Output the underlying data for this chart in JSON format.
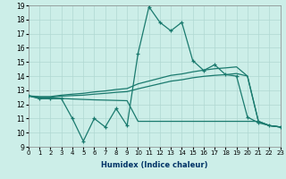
{
  "xlabel": "Humidex (Indice chaleur)",
  "xlim": [
    0,
    23
  ],
  "ylim": [
    9,
    19
  ],
  "xticks": [
    0,
    1,
    2,
    3,
    4,
    5,
    6,
    7,
    8,
    9,
    10,
    11,
    12,
    13,
    14,
    15,
    16,
    17,
    18,
    19,
    20,
    21,
    22,
    23
  ],
  "yticks": [
    9,
    10,
    11,
    12,
    13,
    14,
    15,
    16,
    17,
    18,
    19
  ],
  "bg_color": "#cceee8",
  "line_color": "#1a7a6e",
  "grid_color": "#b0d8d2",
  "line1_y": [
    12.6,
    12.4,
    12.4,
    12.4,
    11.0,
    9.4,
    11.0,
    10.4,
    11.7,
    10.5,
    15.6,
    18.9,
    17.8,
    17.2,
    17.8,
    15.1,
    14.4,
    14.8,
    14.1,
    14.0,
    11.1,
    10.7,
    10.5,
    10.4
  ],
  "line2_y": [
    12.6,
    12.55,
    12.55,
    12.65,
    12.72,
    12.78,
    12.88,
    12.95,
    13.05,
    13.12,
    13.45,
    13.65,
    13.85,
    14.05,
    14.15,
    14.3,
    14.42,
    14.52,
    14.58,
    14.65,
    14.0,
    10.8,
    10.5,
    10.4
  ],
  "line3_y": [
    12.6,
    12.5,
    12.5,
    12.58,
    12.62,
    12.65,
    12.72,
    12.78,
    12.85,
    12.9,
    13.1,
    13.28,
    13.46,
    13.64,
    13.74,
    13.88,
    13.98,
    14.05,
    14.1,
    14.18,
    14.0,
    10.8,
    10.5,
    10.4
  ],
  "line4_y": [
    12.6,
    12.44,
    12.44,
    12.42,
    12.38,
    12.35,
    12.32,
    12.3,
    12.28,
    12.26,
    10.8,
    10.8,
    10.8,
    10.8,
    10.8,
    10.8,
    10.8,
    10.8,
    10.8,
    10.8,
    10.8,
    10.8,
    10.5,
    10.4
  ]
}
